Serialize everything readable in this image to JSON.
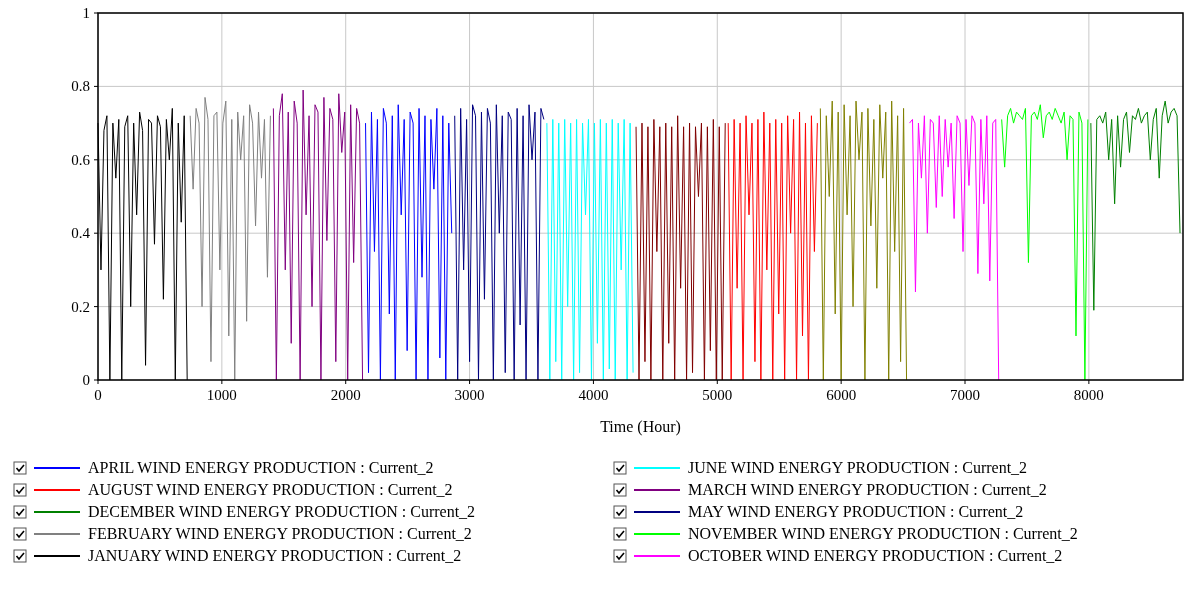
{
  "chart_data": {
    "type": "line",
    "xlabel": "Time (Hour)",
    "xlim": [
      0,
      8760
    ],
    "xticks": [
      0,
      1000,
      2000,
      3000,
      4000,
      5000,
      6000,
      7000,
      8000
    ],
    "ylim": [
      0,
      1
    ],
    "yticks": [
      0,
      0.2,
      0.4,
      0.6,
      0.8,
      1
    ],
    "grid": true,
    "legend": "bottom",
    "line_style": "solid",
    "series": [
      {
        "name": "APRIL WIND ENERGY PRODUCTION : Current_2",
        "color": "#0000ff",
        "x": [
          2160,
          2184,
          2208,
          2232,
          2256,
          2280,
          2304,
          2328,
          2352,
          2376,
          2400,
          2424,
          2448,
          2472,
          2496,
          2520,
          2544,
          2568,
          2592,
          2616,
          2640,
          2664,
          2688,
          2712,
          2736,
          2760,
          2784,
          2808,
          2832,
          2856
        ],
        "values": [
          0.7,
          0.02,
          0.73,
          0.35,
          0.71,
          0.0,
          0.74,
          0.7,
          0.18,
          0.72,
          0.0,
          0.75,
          0.45,
          0.71,
          0.08,
          0.73,
          0.7,
          0.0,
          0.74,
          0.28,
          0.72,
          0.0,
          0.71,
          0.52,
          0.74,
          0.06,
          0.72,
          0.0,
          0.7,
          0.4
        ]
      },
      {
        "name": "AUGUST WIND ENERGY PRODUCTION : Current_2",
        "color": "#ff0000",
        "x": [
          5088,
          5112,
          5136,
          5160,
          5184,
          5208,
          5232,
          5256,
          5280,
          5304,
          5328,
          5352,
          5376,
          5400,
          5424,
          5448,
          5472,
          5496,
          5520,
          5544,
          5568,
          5592,
          5616,
          5640,
          5664,
          5688,
          5712,
          5736,
          5760,
          5784,
          5808
        ],
        "values": [
          0.7,
          0.0,
          0.71,
          0.25,
          0.7,
          0.0,
          0.72,
          0.45,
          0.7,
          0.05,
          0.71,
          0.0,
          0.73,
          0.3,
          0.7,
          0.0,
          0.71,
          0.18,
          0.7,
          0.0,
          0.72,
          0.4,
          0.71,
          0.0,
          0.73,
          0.12,
          0.7,
          0.0,
          0.72,
          0.35,
          0.7
        ]
      },
      {
        "name": "DECEMBER WIND ENERGY PRODUCTION : Current_2",
        "color": "#008000",
        "x": [
          8016,
          8040,
          8064,
          8088,
          8112,
          8136,
          8160,
          8184,
          8208,
          8232,
          8256,
          8280,
          8304,
          8328,
          8352,
          8376,
          8400,
          8424,
          8448,
          8472,
          8496,
          8520,
          8544,
          8568,
          8592,
          8616,
          8640,
          8664,
          8688,
          8712,
          8736
        ],
        "values": [
          0.7,
          0.19,
          0.71,
          0.72,
          0.7,
          0.73,
          0.6,
          0.71,
          0.48,
          0.72,
          0.58,
          0.71,
          0.73,
          0.62,
          0.72,
          0.71,
          0.74,
          0.7,
          0.72,
          0.73,
          0.6,
          0.71,
          0.74,
          0.55,
          0.72,
          0.76,
          0.7,
          0.73,
          0.74,
          0.72,
          0.4
        ]
      },
      {
        "name": "FEBRUARY WIND ENERGY PRODUCTION : Current_2",
        "color": "#808080",
        "x": [
          744,
          768,
          792,
          816,
          840,
          864,
          888,
          912,
          936,
          960,
          984,
          1008,
          1032,
          1056,
          1080,
          1104,
          1128,
          1152,
          1176,
          1200,
          1224,
          1248,
          1272,
          1296,
          1320,
          1344,
          1368,
          1392
        ],
        "values": [
          0.72,
          0.52,
          0.74,
          0.7,
          0.2,
          0.77,
          0.71,
          0.05,
          0.72,
          0.73,
          0.3,
          0.7,
          0.76,
          0.12,
          0.71,
          0.0,
          0.73,
          0.6,
          0.72,
          0.16,
          0.75,
          0.7,
          0.42,
          0.73,
          0.55,
          0.71,
          0.28,
          0.72
        ]
      },
      {
        "name": "JANUARY WIND ENERGY PRODUCTION : Current_2",
        "color": "#000000",
        "x": [
          0,
          24,
          48,
          72,
          96,
          120,
          144,
          168,
          192,
          216,
          240,
          264,
          288,
          312,
          336,
          360,
          384,
          408,
          432,
          456,
          480,
          504,
          528,
          552,
          576,
          600,
          624,
          648,
          672,
          696,
          720
        ],
        "values": [
          0.7,
          0.3,
          0.68,
          0.72,
          0.0,
          0.7,
          0.55,
          0.71,
          0.0,
          0.69,
          0.72,
          0.2,
          0.7,
          0.45,
          0.73,
          0.68,
          0.04,
          0.71,
          0.7,
          0.37,
          0.72,
          0.69,
          0.22,
          0.71,
          0.6,
          0.74,
          0.0,
          0.7,
          0.43,
          0.72,
          0.0
        ]
      },
      {
        "name": "JUNE WIND ENERGY PRODUCTION : Current_2",
        "color": "#00ffff",
        "x": [
          3624,
          3648,
          3672,
          3696,
          3720,
          3744,
          3768,
          3792,
          3816,
          3840,
          3864,
          3888,
          3912,
          3936,
          3960,
          3984,
          4008,
          4032,
          4056,
          4080,
          4104,
          4128,
          4152,
          4176,
          4200,
          4224,
          4248,
          4272,
          4296,
          4320
        ],
        "values": [
          0.7,
          0.0,
          0.71,
          0.05,
          0.7,
          0.0,
          0.71,
          0.2,
          0.7,
          0.0,
          0.71,
          0.02,
          0.7,
          0.45,
          0.71,
          0.0,
          0.7,
          0.1,
          0.71,
          0.0,
          0.7,
          0.03,
          0.71,
          0.0,
          0.7,
          0.3,
          0.71,
          0.0,
          0.7,
          0.02
        ]
      },
      {
        "name": "MARCH WIND ENERGY PRODUCTION : Current_2",
        "color": "#800080",
        "x": [
          1416,
          1440,
          1464,
          1488,
          1512,
          1536,
          1560,
          1584,
          1608,
          1632,
          1656,
          1680,
          1704,
          1728,
          1752,
          1776,
          1800,
          1824,
          1848,
          1872,
          1896,
          1920,
          1944,
          1968,
          1992,
          2016,
          2040,
          2064,
          2088,
          2112,
          2136
        ],
        "values": [
          0.74,
          0.0,
          0.72,
          0.78,
          0.3,
          0.73,
          0.1,
          0.76,
          0.7,
          0.0,
          0.79,
          0.45,
          0.72,
          0.2,
          0.75,
          0.73,
          0.0,
          0.77,
          0.38,
          0.74,
          0.71,
          0.05,
          0.78,
          0.62,
          0.73,
          0.0,
          0.75,
          0.32,
          0.74,
          0.7,
          0.0
        ]
      },
      {
        "name": "MAY WIND ENERGY PRODUCTION : Current_2",
        "color": "#000080",
        "x": [
          2880,
          2904,
          2928,
          2952,
          2976,
          3000,
          3024,
          3048,
          3072,
          3096,
          3120,
          3144,
          3168,
          3192,
          3216,
          3240,
          3264,
          3288,
          3312,
          3336,
          3360,
          3384,
          3408,
          3432,
          3456,
          3480,
          3504,
          3528,
          3552,
          3576,
          3600
        ],
        "values": [
          0.72,
          0.0,
          0.74,
          0.3,
          0.71,
          0.05,
          0.75,
          0.72,
          0.0,
          0.73,
          0.22,
          0.74,
          0.7,
          0.0,
          0.75,
          0.4,
          0.72,
          0.02,
          0.73,
          0.71,
          0.0,
          0.74,
          0.15,
          0.72,
          0.0,
          0.75,
          0.6,
          0.73,
          0.0,
          0.74,
          0.71
        ]
      },
      {
        "name": "NOVEMBER WIND ENERGY PRODUCTION : Current_2",
        "color": "#00ff00",
        "x": [
          7296,
          7320,
          7344,
          7368,
          7392,
          7416,
          7440,
          7464,
          7488,
          7512,
          7536,
          7560,
          7584,
          7608,
          7632,
          7656,
          7680,
          7704,
          7728,
          7752,
          7776,
          7800,
          7824,
          7848,
          7872,
          7896,
          7920,
          7944,
          7968,
          7992
        ],
        "values": [
          0.71,
          0.58,
          0.72,
          0.74,
          0.7,
          0.73,
          0.72,
          0.71,
          0.74,
          0.32,
          0.72,
          0.73,
          0.71,
          0.75,
          0.66,
          0.72,
          0.73,
          0.71,
          0.74,
          0.72,
          0.7,
          0.73,
          0.6,
          0.72,
          0.71,
          0.12,
          0.73,
          0.7,
          0.0,
          0.71
        ]
      },
      {
        "name": "OCTOBER WIND ENERGY PRODUCTION : Current_2",
        "color": "#ff00ff",
        "x": [
          6552,
          6576,
          6600,
          6624,
          6648,
          6672,
          6696,
          6720,
          6744,
          6768,
          6792,
          6816,
          6840,
          6864,
          6888,
          6912,
          6936,
          6960,
          6984,
          7008,
          7032,
          7056,
          7080,
          7104,
          7128,
          7152,
          7176,
          7200,
          7224,
          7248,
          7272
        ],
        "values": [
          0.7,
          0.71,
          0.24,
          0.7,
          0.55,
          0.72,
          0.4,
          0.71,
          0.7,
          0.47,
          0.72,
          0.5,
          0.71,
          0.58,
          0.7,
          0.44,
          0.72,
          0.7,
          0.35,
          0.71,
          0.53,
          0.72,
          0.7,
          0.29,
          0.71,
          0.48,
          0.72,
          0.27,
          0.7,
          0.71,
          0.0
        ]
      },
      {
        "color": "#800000",
        "x": [
          4344,
          4368,
          4392,
          4416,
          4440,
          4464,
          4488,
          4512,
          4536,
          4560,
          4584,
          4608,
          4632,
          4656,
          4680,
          4704,
          4728,
          4752,
          4776,
          4800,
          4824,
          4848,
          4872,
          4896,
          4920,
          4944,
          4968,
          4992,
          5016,
          5040,
          5064
        ],
        "values": [
          0.69,
          0.0,
          0.7,
          0.05,
          0.69,
          0.0,
          0.71,
          0.35,
          0.69,
          0.0,
          0.7,
          0.1,
          0.69,
          0.0,
          0.72,
          0.25,
          0.69,
          0.0,
          0.7,
          0.02,
          0.69,
          0.5,
          0.7,
          0.0,
          0.69,
          0.08,
          0.71,
          0.0,
          0.69,
          0.0,
          0.7
        ]
      },
      {
        "color": "#808000",
        "x": [
          5832,
          5856,
          5880,
          5904,
          5928,
          5952,
          5976,
          6000,
          6024,
          6048,
          6072,
          6096,
          6120,
          6144,
          6168,
          6192,
          6216,
          6240,
          6264,
          6288,
          6312,
          6336,
          6360,
          6384,
          6408,
          6432,
          6456,
          6480,
          6504,
          6528
        ],
        "values": [
          0.74,
          0.0,
          0.72,
          0.5,
          0.76,
          0.18,
          0.73,
          0.0,
          0.75,
          0.45,
          0.72,
          0.2,
          0.76,
          0.6,
          0.73,
          0.0,
          0.74,
          0.42,
          0.71,
          0.25,
          0.75,
          0.55,
          0.73,
          0.0,
          0.76,
          0.35,
          0.72,
          0.05,
          0.74,
          0.0
        ]
      }
    ]
  }
}
